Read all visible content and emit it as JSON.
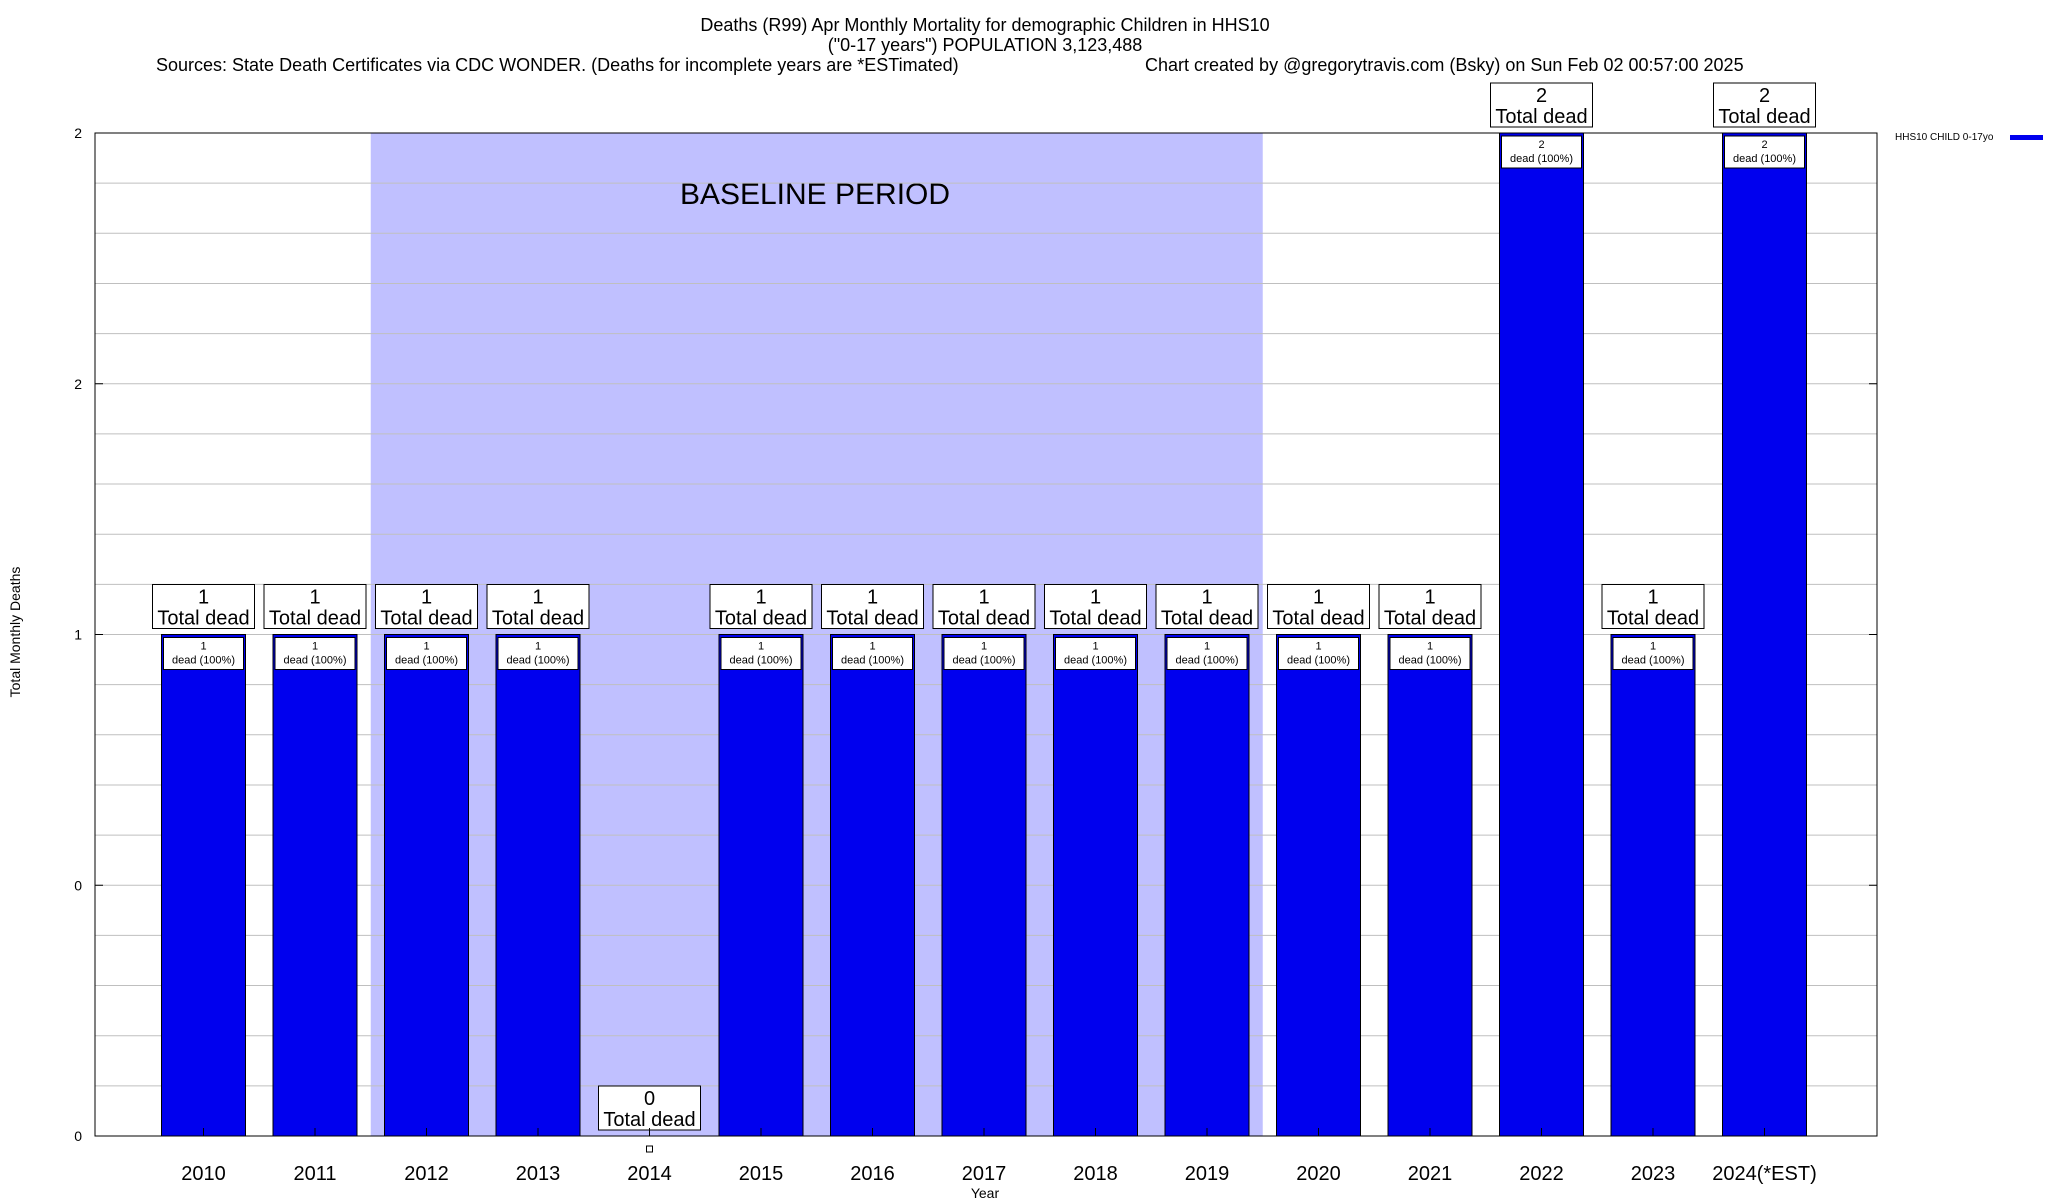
{
  "chart_data": {
    "type": "bar",
    "title": "Deaths (R99) Apr Monthly Mortality for demographic Children in HHS10",
    "subtitle": "(\"0-17 years\") POPULATION 3,123,488",
    "sources": "Sources: State Death Certificates via CDC WONDER. (Deaths for incomplete years are *ESTimated)",
    "credit": "Chart created by @gregorytravis.com (Bsky) on Sun Feb 02 00:57:00 2025",
    "xlabel": "Year",
    "ylabel": "Total Monthly Deaths",
    "ylim": [
      0,
      2
    ],
    "y_tick_labels": [
      "0",
      "0",
      "1",
      "2",
      "2"
    ],
    "grid": true,
    "legend_position": "top-right",
    "categories": [
      "2010",
      "2011",
      "2012",
      "2013",
      "2014",
      "2015",
      "2016",
      "2017",
      "2018",
      "2019",
      "2020",
      "2021",
      "2022",
      "2023",
      "2024(*EST)"
    ],
    "series": [
      {
        "name": "HHS10 CHILD 0-17yo",
        "color": "#0000ee",
        "values": [
          1,
          1,
          1,
          1,
          0,
          1,
          1,
          1,
          1,
          1,
          1,
          1,
          2,
          1,
          2
        ]
      }
    ],
    "total_labels": {
      "numbers": [
        "1",
        "1",
        "1",
        "1",
        "0",
        "1",
        "1",
        "1",
        "1",
        "1",
        "1",
        "1",
        "2",
        "1",
        "2"
      ],
      "suffix": "Total dead"
    },
    "bar_labels": {
      "numbers": [
        "1",
        "1",
        "1",
        "1",
        "",
        "1",
        "1",
        "1",
        "1",
        "1",
        "1",
        "1",
        "2",
        "1",
        "2"
      ],
      "suffix": "dead (100%)"
    },
    "baseline_period": {
      "label": "BASELINE PERIOD",
      "from": "2012",
      "to": "2019",
      "color": "#c0c0ff"
    }
  }
}
